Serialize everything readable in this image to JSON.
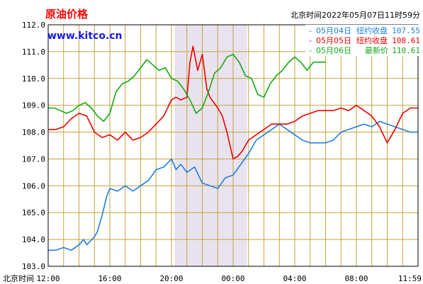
{
  "header": {
    "title": "原油价格",
    "site": "www.kitco.cn",
    "timestamp": "北京时间2022年05月07日11时59分"
  },
  "legend": [
    {
      "date": "05月04日",
      "label": "纽约收盘",
      "value": "107.55"
    },
    {
      "date": "05月05日",
      "label": "纽约收盘",
      "value": "108.61"
    },
    {
      "date": "05月06日",
      "label": "最新价",
      "value": "110.61"
    }
  ],
  "colors": {
    "title": "#ff0000",
    "site": "#0000ff",
    "grid": "#c8a23c",
    "shade": "#e8e3ee",
    "frame": "#000000",
    "series": [
      "#1e7fe0",
      "#ee0000",
      "#11aa11"
    ]
  },
  "axis": {
    "x_title": "北京时间"
  },
  "chart_data": {
    "type": "line",
    "title": "原油价格",
    "xlabel": "北京时间",
    "ylabel": "",
    "ylim": [
      103.0,
      112.0
    ],
    "xlim": [
      0,
      24
    ],
    "y_ticks": [
      "112.0",
      "111.0",
      "110.0",
      "109.0",
      "108.0",
      "107.0",
      "106.0",
      "105.0",
      "104.0",
      "103.0"
    ],
    "x_ticks": [
      {
        "v": 0,
        "label": "12:00"
      },
      {
        "v": 4,
        "label": "16:00"
      },
      {
        "v": 8,
        "label": "20:00"
      },
      {
        "v": 12,
        "label": "00:00"
      },
      {
        "v": 16,
        "label": "04:00"
      },
      {
        "v": 20,
        "label": "08:00"
      },
      {
        "v": 24,
        "label": "11:59"
      }
    ],
    "shaded_range": [
      8.2,
      12.9
    ],
    "grid": true,
    "legend_position": "top-right",
    "series": [
      {
        "name": "05月04日 纽约收盘 107.55",
        "x": [
          0,
          0.5,
          1,
          1.5,
          2,
          2.3,
          2.5,
          3,
          3.2,
          3.5,
          3.8,
          4,
          4.5,
          5,
          5.5,
          6,
          6.5,
          7,
          7.5,
          8,
          8.3,
          8.6,
          9,
          9.5,
          10,
          10.5,
          11,
          11.5,
          12,
          12.5,
          13,
          13.5,
          14,
          14.5,
          15,
          15.5,
          16,
          16.5,
          17,
          17.5,
          18,
          18.5,
          19,
          19.5,
          20,
          20.5,
          21,
          21.5,
          22,
          22.5,
          23,
          23.5,
          24
        ],
        "y": [
          103.6,
          103.6,
          103.7,
          103.6,
          103.8,
          104.0,
          103.8,
          104.1,
          104.3,
          104.9,
          105.6,
          105.9,
          105.8,
          106.0,
          105.8,
          106.0,
          106.2,
          106.6,
          106.7,
          107.0,
          106.6,
          106.8,
          106.5,
          106.7,
          106.1,
          106.0,
          105.9,
          106.3,
          106.4,
          106.8,
          107.2,
          107.7,
          107.9,
          108.1,
          108.3,
          108.1,
          107.9,
          107.7,
          107.6,
          107.6,
          107.6,
          107.7,
          108.0,
          108.1,
          108.2,
          108.3,
          108.2,
          108.4,
          108.3,
          108.2,
          108.1,
          108.0,
          108.0
        ]
      },
      {
        "name": "05月05日 纽约收盘 108.61",
        "x": [
          0,
          0.5,
          1,
          1.5,
          2,
          2.5,
          3,
          3.5,
          4,
          4.5,
          5,
          5.5,
          6,
          6.5,
          7,
          7.5,
          8,
          8.3,
          8.6,
          9,
          9.2,
          9.4,
          9.7,
          10,
          10.3,
          10.5,
          11,
          11.3,
          11.6,
          12,
          12.3,
          12.6,
          13,
          13.5,
          14,
          14.5,
          15,
          15.5,
          16,
          16.5,
          17,
          17.5,
          18,
          18.5,
          19,
          19.5,
          20,
          20.5,
          21,
          21.5,
          22,
          22.5,
          23,
          23.5,
          24
        ],
        "y": [
          108.1,
          108.1,
          108.2,
          108.5,
          108.7,
          108.6,
          108.0,
          107.8,
          107.9,
          107.7,
          108.0,
          107.7,
          107.8,
          108.0,
          108.3,
          108.6,
          109.2,
          109.3,
          109.2,
          109.3,
          110.6,
          111.2,
          110.3,
          110.9,
          109.6,
          109.3,
          108.9,
          108.6,
          108.0,
          107.0,
          107.1,
          107.3,
          107.7,
          107.9,
          108.1,
          108.3,
          108.3,
          108.3,
          108.4,
          108.6,
          108.7,
          108.8,
          108.8,
          108.8,
          108.9,
          108.8,
          109.0,
          108.8,
          108.6,
          108.2,
          107.6,
          108.1,
          108.7,
          108.9,
          108.9
        ]
      },
      {
        "name": "05月06日 最新价 110.61",
        "x": [
          0,
          0.4,
          0.8,
          1.2,
          1.6,
          2,
          2.4,
          2.8,
          3.2,
          3.6,
          4,
          4.4,
          4.8,
          5.2,
          5.6,
          6,
          6.4,
          6.8,
          7.2,
          7.6,
          8,
          8.4,
          8.8,
          9.2,
          9.6,
          10,
          10.4,
          10.8,
          11.2,
          11.6,
          12,
          12.4,
          12.8,
          13.2,
          13.6,
          14,
          14.4,
          14.8,
          15.2,
          15.6,
          16,
          16.4,
          16.8,
          17.2,
          17.6,
          18
        ],
        "y": [
          108.9,
          108.9,
          108.8,
          108.7,
          108.8,
          109.0,
          109.1,
          108.9,
          108.6,
          108.4,
          108.7,
          109.5,
          109.8,
          109.9,
          110.1,
          110.4,
          110.7,
          110.5,
          110.3,
          110.4,
          110.0,
          109.9,
          109.6,
          109.2,
          108.7,
          108.9,
          109.5,
          110.2,
          110.4,
          110.8,
          110.9,
          110.6,
          110.1,
          110.0,
          109.4,
          109.3,
          109.8,
          110.1,
          110.3,
          110.6,
          110.8,
          110.6,
          110.3,
          110.6,
          110.61,
          110.61
        ]
      }
    ]
  }
}
